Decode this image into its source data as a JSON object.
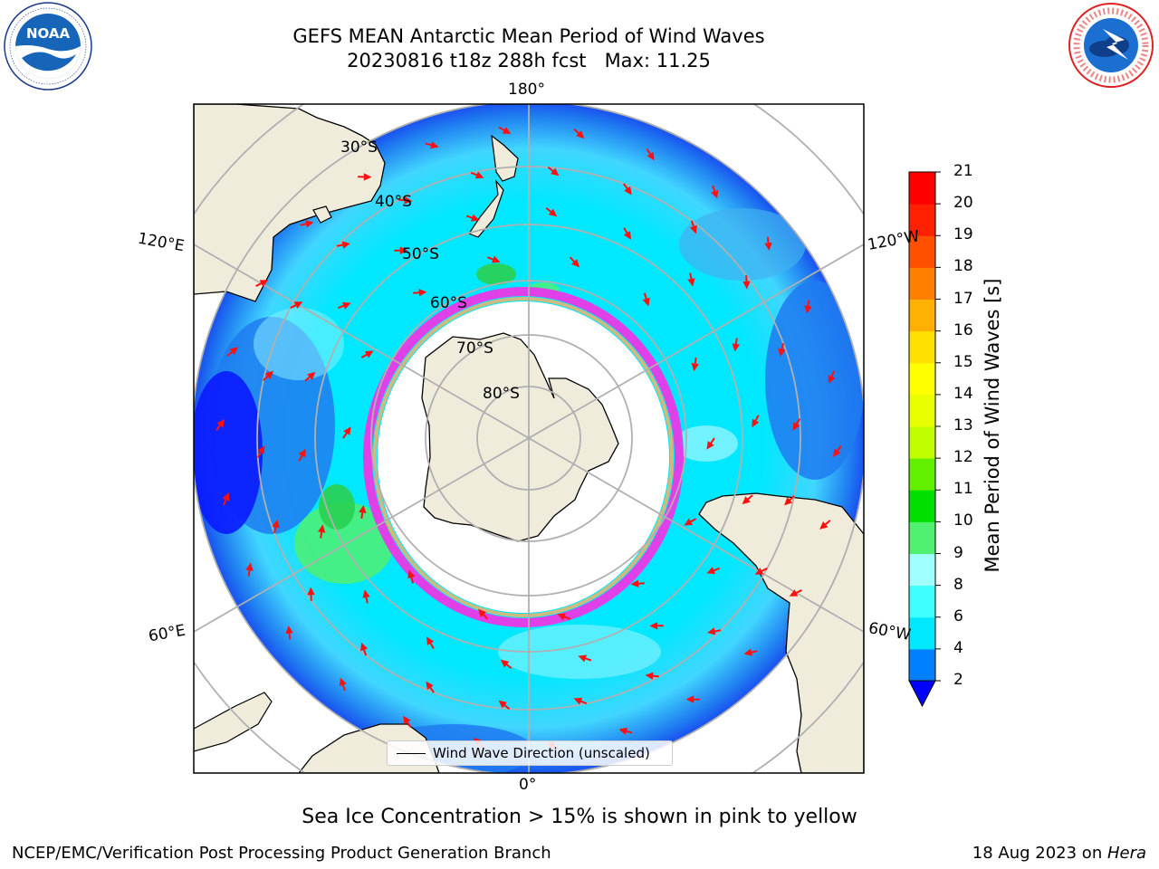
{
  "title": {
    "line1": "GEFS MEAN Antarctic Mean Period of Wind Waves",
    "line2": "20230816 t18z 288h fcst   Max: 11.25"
  },
  "logos": {
    "left": "noaa-logo",
    "right": "national-weather-service-logo"
  },
  "map": {
    "projection": "south-polar-stereographic",
    "lon_labels": {
      "top": "180°",
      "bottom": "0°",
      "upper_left": "120°E",
      "upper_right": "120°W",
      "lower_left": "60°E",
      "lower_right": "60°W"
    },
    "lat_labels": [
      "30°S",
      "40°S",
      "50°S",
      "60°S",
      "70°S",
      "80°S"
    ],
    "legend_label": "Wind Wave Direction (unscaled)",
    "colors": {
      "land": "#efecdc",
      "ice_edge": "#e040e8",
      "ocean_low": "#00e8ff",
      "ocean_light": "#8ff4ff",
      "ocean_blue": "#1e7bf0",
      "ocean_deep": "#0a1aff",
      "swell_green": "#3ce86a",
      "arrow": "#ff1010",
      "grid": "#b0b0b0"
    }
  },
  "colorbar": {
    "title": "Mean Period of Wind Waves [s]",
    "ticks": [
      "2",
      "4",
      "6",
      "8",
      "9",
      "10",
      "11",
      "12",
      "13",
      "14",
      "15",
      "16",
      "17",
      "18",
      "19",
      "20",
      "21"
    ],
    "colors": [
      "#0000ff",
      "#0080ff",
      "#00e8ff",
      "#40ffff",
      "#a0ffff",
      "#50f070",
      "#00e000",
      "#60f000",
      "#c0ff00",
      "#e8ff00",
      "#ffff00",
      "#ffe000",
      "#ffb000",
      "#ff8000",
      "#ff5000",
      "#ff2000",
      "#ff0000"
    ],
    "under_color": "#0000ff"
  },
  "footer": {
    "note": "Sea Ice Concentration > 15% is shown in pink to yellow",
    "credit": "NCEP/EMC/Verification Post Processing Product Generation Branch",
    "date": "18 Aug 2023 on ",
    "machine": "Hera"
  }
}
